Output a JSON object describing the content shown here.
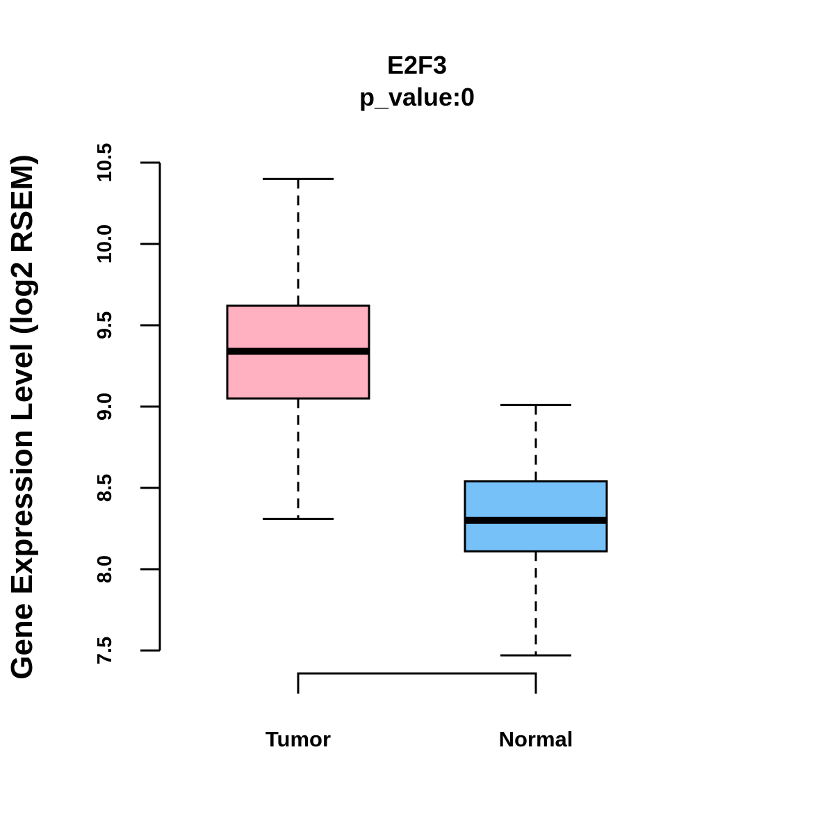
{
  "chart_data": {
    "type": "box",
    "title": "E2F3",
    "subtitle": "p_value:0",
    "xlabel": "",
    "ylabel": "Gene Expression Level (log2 RSEM)",
    "ylim": [
      7.5,
      10.5
    ],
    "yticks": [
      7.5,
      8.0,
      8.5,
      9.0,
      9.5,
      10.0,
      10.5
    ],
    "ytick_labels": [
      "7.5",
      "8.0",
      "8.5",
      "9.0",
      "9.5",
      "10.0",
      "10.5"
    ],
    "categories": [
      "Tumor",
      "Normal"
    ],
    "boxes": [
      {
        "name": "Tumor",
        "min": 8.31,
        "q1": 9.05,
        "median": 9.34,
        "q3": 9.62,
        "max": 10.4,
        "color": "#FFB0C1"
      },
      {
        "name": "Normal",
        "min": 7.47,
        "q1": 8.11,
        "median": 8.3,
        "q3": 8.54,
        "max": 9.01,
        "color": "#75C1F8"
      }
    ],
    "comparison_bracket": [
      "Tumor",
      "Normal"
    ],
    "grid": false,
    "legend": "none"
  }
}
